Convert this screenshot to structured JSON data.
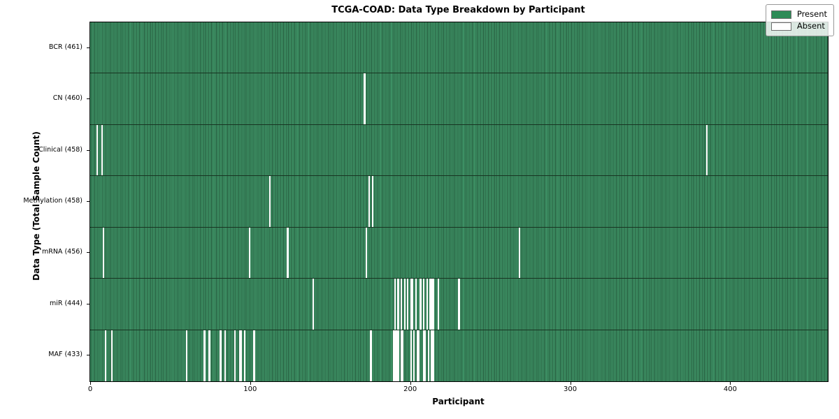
{
  "title": "TCGA-COAD: Data Type Breakdown by Participant",
  "xlabel": "Participant",
  "ylabel": "Data Type (Total Sample Count)",
  "legend": {
    "present_label": "Present",
    "absent_label": "Absent"
  },
  "colors": {
    "present": "#3d9064",
    "cell_edge": "#265c3e",
    "absent": "#ffffff",
    "legend_swatch_present": "#2e8b57",
    "plot_border": "#000000"
  },
  "chart_data": {
    "type": "heatmap",
    "title": "TCGA-COAD: Data Type Breakdown by Participant",
    "xlabel": "Participant",
    "ylabel": "Data Type (Total Sample Count)",
    "n_participants": 461,
    "x_ticks": [
      0,
      100,
      200,
      300,
      400
    ],
    "legend_position": "upper right",
    "cell_states": [
      "Present",
      "Absent"
    ],
    "rows": [
      {
        "label": "BCR (461)",
        "total": 461,
        "absent_participants": []
      },
      {
        "label": "CN (460)",
        "total": 460,
        "absent_participants": [
          171
        ]
      },
      {
        "label": "Clinical (458)",
        "total": 458,
        "absent_participants": [
          4,
          7,
          385
        ]
      },
      {
        "label": "Methylation (458)",
        "total": 458,
        "absent_participants": [
          112,
          174,
          176
        ]
      },
      {
        "label": "mRNA (456)",
        "total": 456,
        "absent_participants": [
          8,
          99,
          123,
          172,
          268
        ]
      },
      {
        "label": "miR (444)",
        "total": 444,
        "absent_participants": [
          139,
          190,
          192,
          194,
          196,
          198,
          200,
          201,
          203,
          206,
          208,
          210,
          212,
          213,
          214,
          217,
          230
        ]
      },
      {
        "label": "MAF (433)",
        "total": 433,
        "absent_participants": [
          9,
          13,
          60,
          71,
          74,
          81,
          84,
          90,
          93,
          94,
          96,
          102,
          175,
          189,
          190,
          191,
          192,
          194,
          195,
          200,
          202,
          204,
          205,
          208,
          209,
          211,
          213,
          214
        ]
      }
    ]
  }
}
